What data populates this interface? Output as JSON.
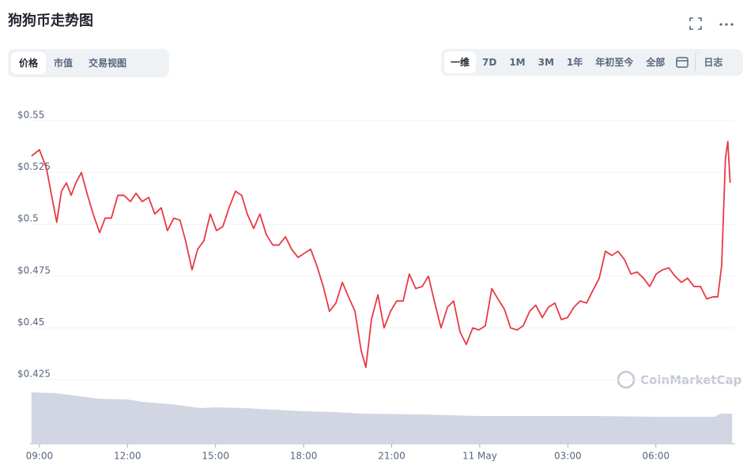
{
  "title": "狗狗币走势图",
  "tabs": [
    "价格",
    "市值",
    "交易视图"
  ],
  "ranges": [
    "一维",
    "7D",
    "1M",
    "3M",
    "1年",
    "年初至今",
    "全部"
  ],
  "log_button": "日志",
  "watermark": "CoinMarketCap",
  "chart_data": {
    "type": "line",
    "color": "#ea3943",
    "x": [
      8.73,
      9.0,
      9.24,
      9.4,
      9.59,
      9.75,
      9.92,
      10.08,
      10.24,
      10.43,
      10.62,
      10.83,
      11.05,
      11.24,
      11.45,
      11.67,
      11.88,
      12.1,
      12.29,
      12.5,
      12.72,
      12.93,
      13.15,
      13.36,
      13.58,
      13.79,
      13.98,
      14.2,
      14.39,
      14.6,
      14.82,
      15.03,
      15.25,
      15.46,
      15.68,
      15.89,
      16.08,
      16.3,
      16.51,
      16.73,
      16.95,
      17.16,
      17.38,
      17.59,
      17.81,
      18.02,
      18.24,
      18.45,
      18.67,
      18.88,
      19.1,
      19.32,
      19.53,
      19.75,
      19.96,
      20.12,
      20.31,
      20.53,
      20.74,
      20.96,
      21.17,
      21.39,
      21.6,
      21.82,
      22.04,
      22.25,
      22.47,
      22.68,
      22.9,
      23.11,
      23.33,
      23.54,
      23.76,
      23.97,
      24.19,
      24.41,
      24.62,
      24.84,
      25.05,
      25.27,
      25.48,
      25.7,
      25.91,
      26.13,
      26.34,
      26.56,
      26.78,
      26.99,
      27.21,
      27.42,
      27.64,
      27.85,
      28.07,
      28.28,
      28.5,
      28.71,
      28.93,
      29.15,
      29.36,
      29.58,
      29.79,
      30.01,
      30.22,
      30.44,
      30.65,
      30.87,
      31.08,
      31.3,
      31.52,
      31.73,
      31.95,
      32.11,
      32.24,
      32.37,
      32.45,
      32.53
    ],
    "values": [
      0.533,
      0.536,
      0.527,
      0.515,
      0.501,
      0.516,
      0.52,
      0.514,
      0.52,
      0.525,
      0.515,
      0.505,
      0.496,
      0.503,
      0.503,
      0.514,
      0.514,
      0.511,
      0.515,
      0.511,
      0.513,
      0.505,
      0.508,
      0.497,
      0.503,
      0.502,
      0.492,
      0.478,
      0.488,
      0.492,
      0.505,
      0.497,
      0.499,
      0.508,
      0.516,
      0.514,
      0.505,
      0.498,
      0.505,
      0.495,
      0.49,
      0.49,
      0.494,
      0.488,
      0.484,
      0.486,
      0.488,
      0.48,
      0.47,
      0.458,
      0.462,
      0.472,
      0.465,
      0.458,
      0.439,
      0.431,
      0.454,
      0.466,
      0.45,
      0.458,
      0.463,
      0.463,
      0.476,
      0.469,
      0.47,
      0.475,
      0.462,
      0.45,
      0.46,
      0.463,
      0.448,
      0.442,
      0.45,
      0.449,
      0.451,
      0.469,
      0.464,
      0.459,
      0.45,
      0.449,
      0.451,
      0.458,
      0.461,
      0.455,
      0.46,
      0.462,
      0.454,
      0.455,
      0.46,
      0.463,
      0.462,
      0.468,
      0.474,
      0.487,
      0.485,
      0.487,
      0.483,
      0.476,
      0.477,
      0.474,
      0.47,
      0.476,
      0.478,
      0.479,
      0.475,
      0.472,
      0.474,
      0.47,
      0.47,
      0.464,
      0.465,
      0.465,
      0.48,
      0.532,
      0.54,
      0.52
    ],
    "volume": {
      "color": "#d1d6e2",
      "x": [
        8.73,
        9.5,
        10.2,
        11,
        12,
        12.5,
        13.5,
        14.5,
        15,
        16,
        17,
        18,
        19,
        20,
        22,
        24,
        26,
        28,
        30,
        32,
        32.2,
        32.6
      ],
      "values": [
        65,
        64,
        61,
        57,
        56,
        53,
        50,
        45,
        46,
        45,
        43,
        41,
        40,
        38,
        37,
        35,
        35,
        35,
        34,
        34,
        38,
        38
      ]
    },
    "xlim": [
      8.68,
      32.7
    ],
    "xticks": [
      {
        "value": 9,
        "label": "09:00"
      },
      {
        "value": 12,
        "label": "12:00"
      },
      {
        "value": 15,
        "label": "15:00"
      },
      {
        "value": 18,
        "label": "18:00"
      },
      {
        "value": 21,
        "label": "21:00"
      },
      {
        "value": 24,
        "label": "11 May"
      },
      {
        "value": 27,
        "label": "03:00"
      },
      {
        "value": 30,
        "label": "06:00"
      }
    ],
    "ylim": [
      0.425,
      0.55
    ],
    "yticks": [
      {
        "value": 0.55,
        "label": "$0.55"
      },
      {
        "value": 0.525,
        "label": "$0.525"
      },
      {
        "value": 0.5,
        "label": "$0.5"
      },
      {
        "value": 0.475,
        "label": "$0.475"
      },
      {
        "value": 0.45,
        "label": "$0.45"
      },
      {
        "value": 0.425,
        "label": "$0.425"
      }
    ],
    "grid": true
  }
}
